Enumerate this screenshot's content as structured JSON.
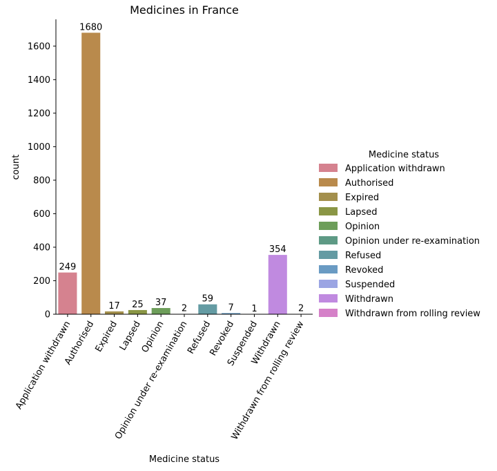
{
  "chart_data": {
    "type": "bar",
    "title": "Medicines in France",
    "xlabel": "Medicine status",
    "ylabel": "count",
    "ylim": [
      0,
      1760
    ],
    "yticks": [
      0,
      200,
      400,
      600,
      800,
      1000,
      1200,
      1400,
      1600
    ],
    "categories": [
      "Application withdrawn",
      "Authorised",
      "Expired",
      "Lapsed",
      "Opinion",
      "Opinion under re-examination",
      "Refused",
      "Revoked",
      "Suspended",
      "Withdrawn",
      "Withdrawn from rolling review"
    ],
    "values": [
      249,
      1680,
      17,
      25,
      37,
      2,
      59,
      7,
      1,
      354,
      2
    ],
    "colors": [
      "#d5828f",
      "#b98a4c",
      "#a38f4c",
      "#8a9645",
      "#6d9e5a",
      "#5e9a85",
      "#649ba3",
      "#6a9bc3",
      "#9ba5e3",
      "#c08ae0",
      "#d581c8"
    ],
    "grid": false,
    "legend": {
      "title": "Medicine status",
      "position": "right"
    }
  }
}
